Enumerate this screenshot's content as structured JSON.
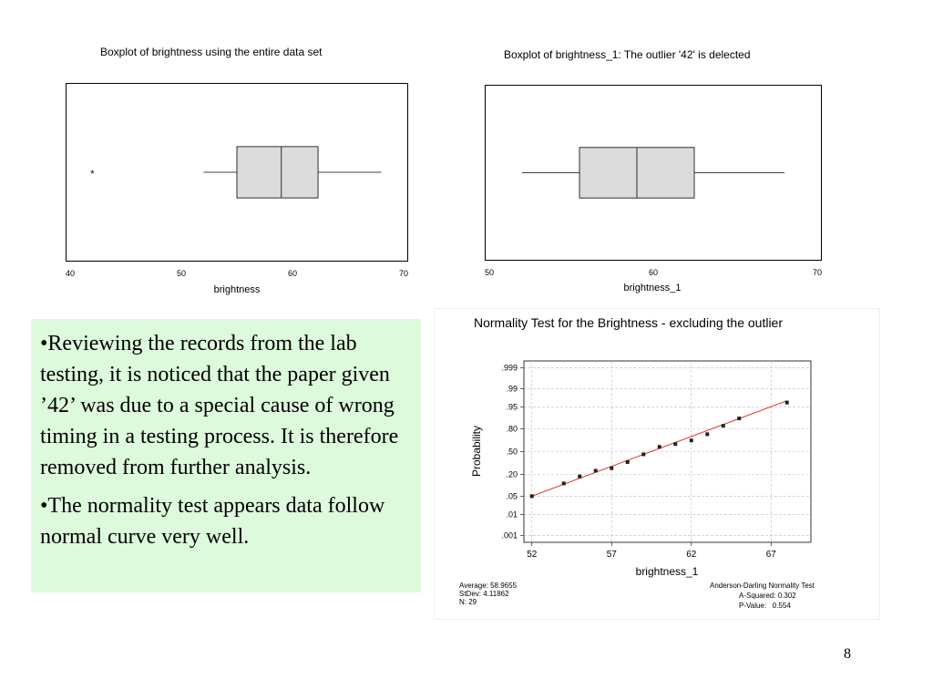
{
  "slide": {
    "page_number": "8",
    "bullets": [
      "•Reviewing the records from the lab testing, it is noticed that the paper given ’42’ was due to a special cause of wrong timing in a testing process. It is therefore removed from further analysis.",
      "•The normality test appears data follow normal curve very well."
    ],
    "textbox_color": "#ddfadd"
  },
  "chart_data": [
    {
      "type": "boxplot",
      "title": "Boxplot of brightness using the entire data set",
      "xlabel": "brightness",
      "xlim": [
        40,
        70
      ],
      "ticks": [
        "40",
        "50",
        "60",
        "70"
      ],
      "whisker_low": 52,
      "q1": 55,
      "median": 59,
      "q3": 62.3,
      "whisker_high": 68,
      "outliers": [
        42
      ],
      "outlier_marker": "*",
      "box_fill": "#dcdcdc"
    },
    {
      "type": "boxplot",
      "title": "Boxplot of brightness_1: The outlier '42' is delected",
      "xlabel": "brightness_1",
      "xlim": [
        50,
        70
      ],
      "ticks": [
        "50",
        "60",
        "70"
      ],
      "whisker_low": 52,
      "q1": 55.5,
      "median": 59,
      "q3": 62.5,
      "whisker_high": 68,
      "outliers": [],
      "box_fill": "#dcdcdc"
    },
    {
      "type": "scatter",
      "title": "Normality Test for the Brightness - excluding the outlier",
      "xlabel": "brightness_1",
      "ylabel": "Probability",
      "xlim": [
        51.5,
        69.5
      ],
      "xticks": [
        "52",
        "57",
        "62",
        "67"
      ],
      "yticks": [
        ".999",
        ".99",
        ".95",
        ".80",
        ".50",
        ".20",
        ".05",
        ".01",
        ".001"
      ],
      "grid": true,
      "fit_line_color": "#e03c31",
      "points": [
        {
          "x": 52,
          "y": 0.05
        },
        {
          "x": 54,
          "y": 0.12
        },
        {
          "x": 55,
          "y": 0.18
        },
        {
          "x": 56,
          "y": 0.24
        },
        {
          "x": 57,
          "y": 0.27
        },
        {
          "x": 58,
          "y": 0.35
        },
        {
          "x": 59,
          "y": 0.46
        },
        {
          "x": 60,
          "y": 0.57
        },
        {
          "x": 61,
          "y": 0.61
        },
        {
          "x": 62,
          "y": 0.66
        },
        {
          "x": 63,
          "y": 0.74
        },
        {
          "x": 64,
          "y": 0.83
        },
        {
          "x": 65,
          "y": 0.89
        },
        {
          "x": 68,
          "y": 0.965
        }
      ],
      "fit_line": {
        "from": {
          "x": 52,
          "y": 0.05
        },
        "to": {
          "x": 68,
          "y": 0.97
        }
      },
      "stats_left": [
        "Average: 58.9655",
        "StDev: 4.11862",
        "N: 29"
      ],
      "stats_right": [
        "Anderson-Darling Normality Test",
        "A-Squared: 0.302",
        "P-Value:   0.554"
      ]
    }
  ]
}
